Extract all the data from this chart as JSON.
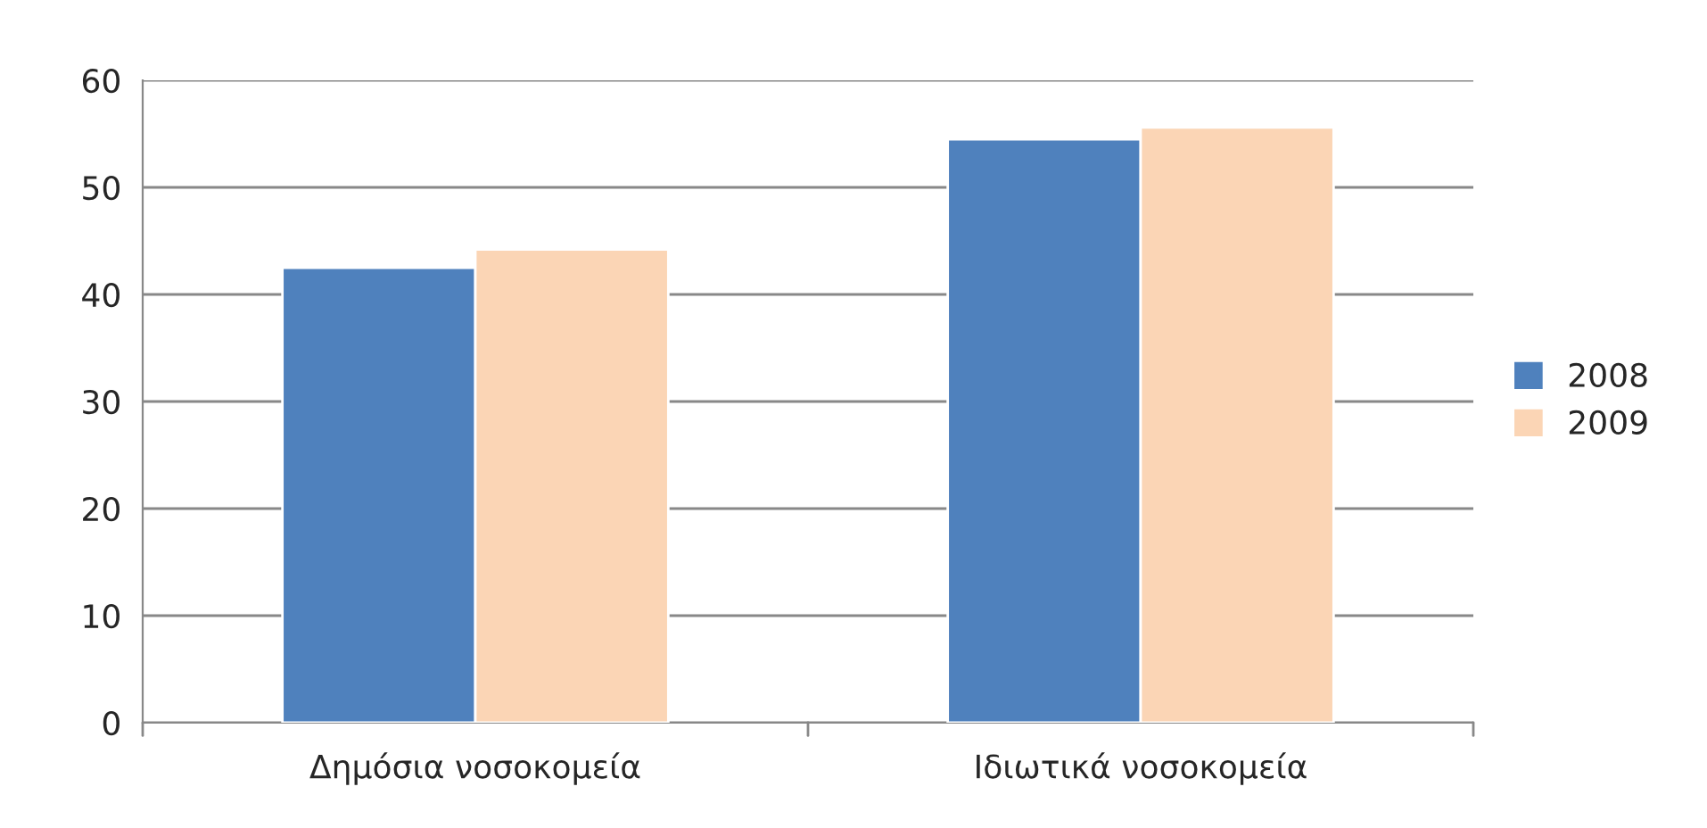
{
  "chart_data": {
    "type": "bar",
    "categories": [
      "Δημόσια νοσοκομεία",
      "Ιδιωτικά νοσοκομεία"
    ],
    "series": [
      {
        "name": "2008",
        "color": "#4f81bd",
        "values": [
          42.5,
          54.5
        ]
      },
      {
        "name": "2009",
        "color": "#fbd5b5",
        "values": [
          44.2,
          55.6
        ]
      }
    ],
    "ylim": [
      0,
      60
    ],
    "yticks": [
      0,
      10,
      20,
      30,
      40,
      50,
      60
    ],
    "grid": "y",
    "legend": "right"
  }
}
